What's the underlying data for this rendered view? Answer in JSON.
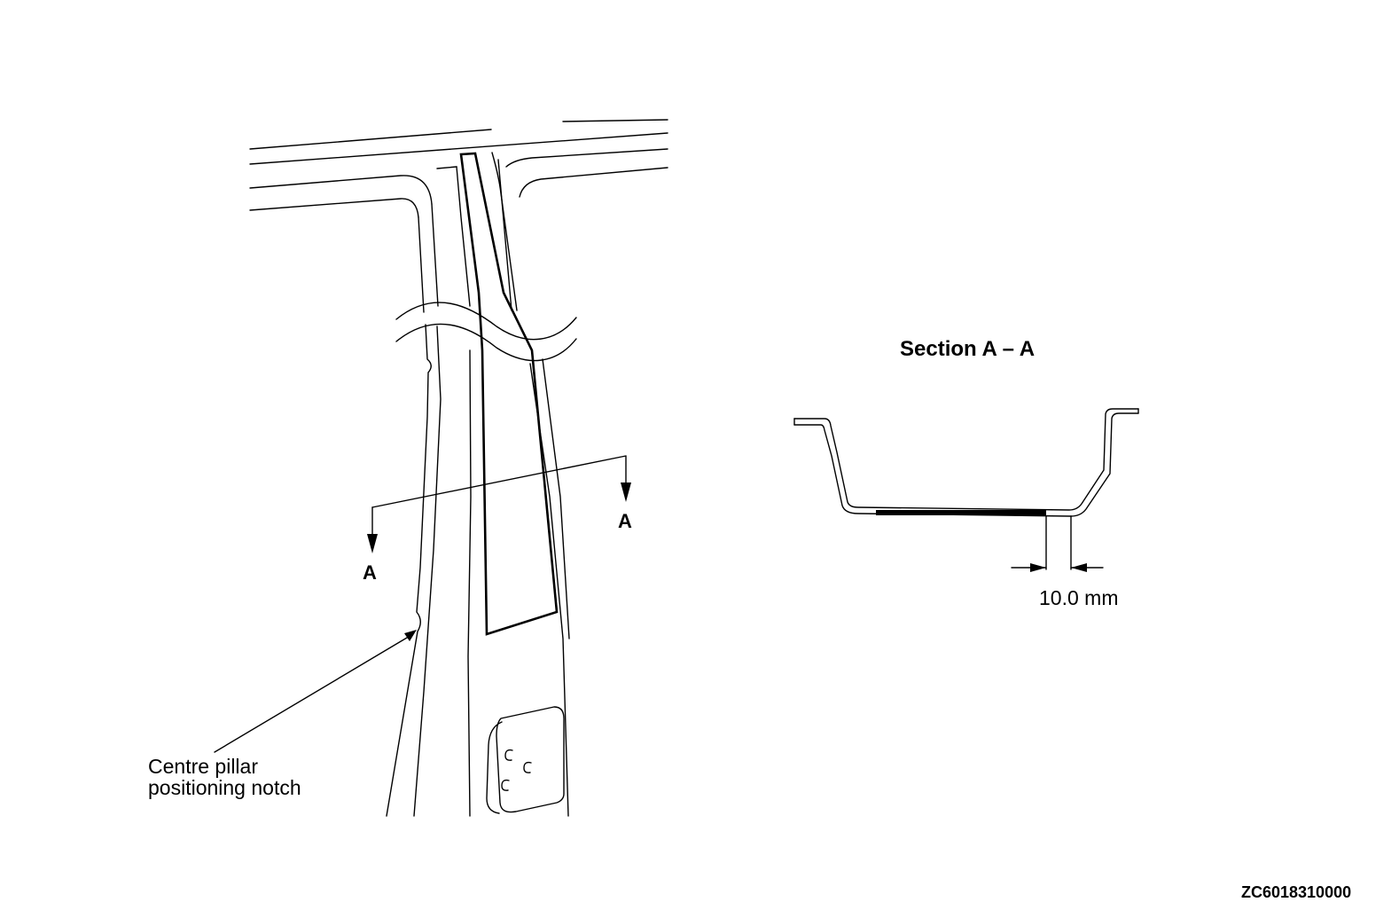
{
  "section_title": "Section A – A",
  "section_marker_left": "A",
  "section_marker_right": "A",
  "callout": {
    "line1": "Centre pillar",
    "line2": "positioning notch"
  },
  "dimension_label": "10.0 mm",
  "figure_code": "ZC6018310000"
}
